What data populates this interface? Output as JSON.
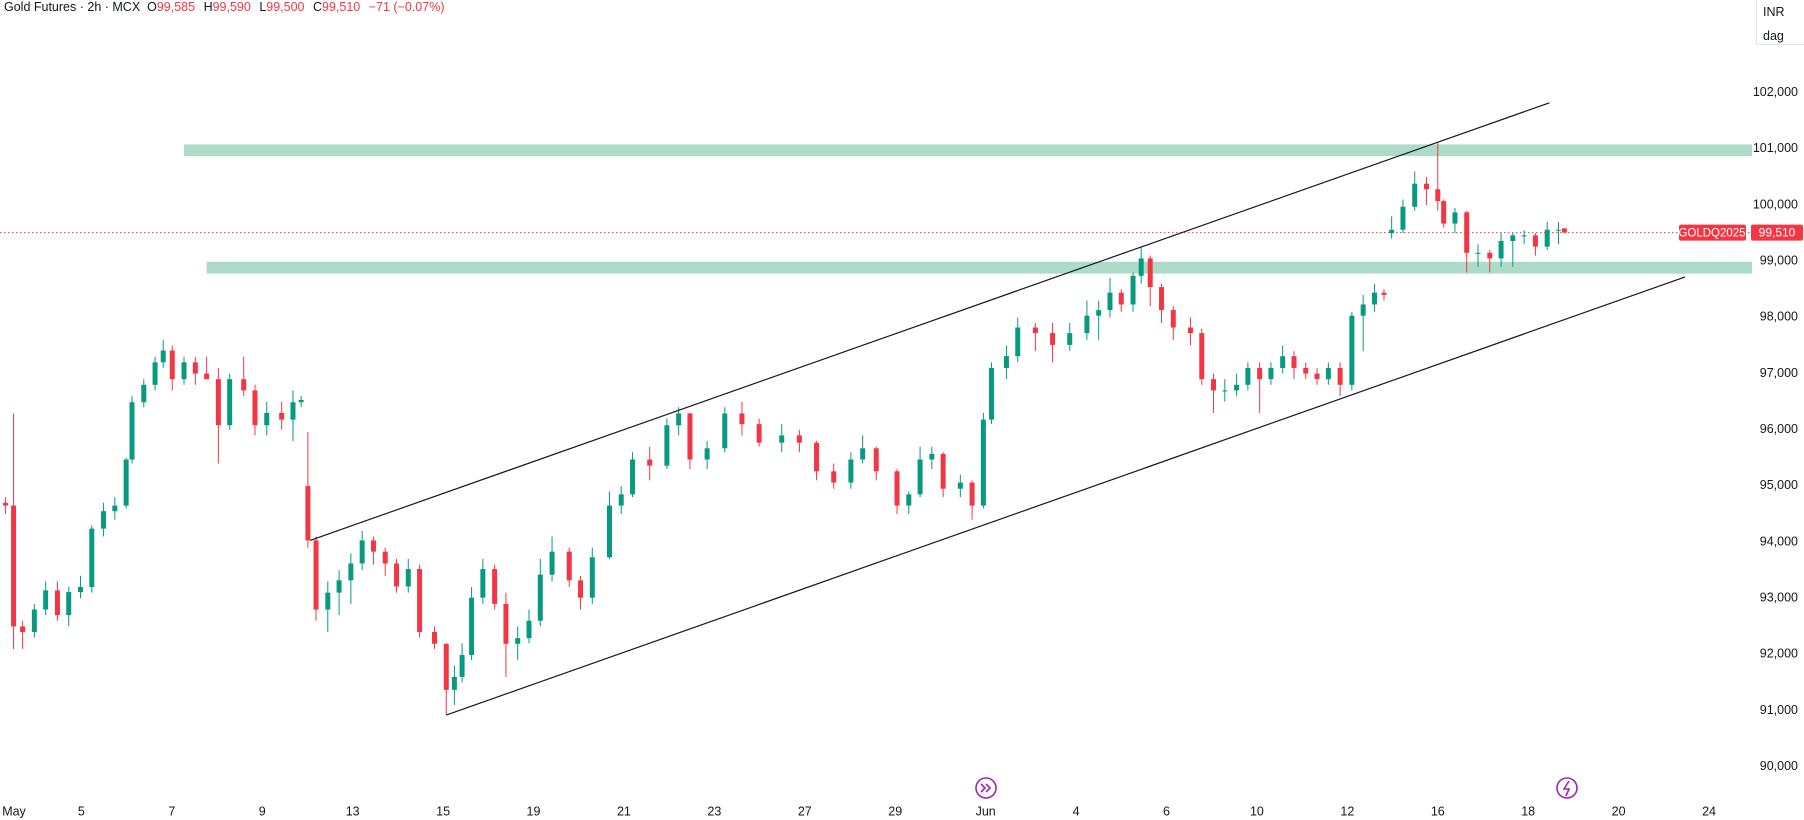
{
  "header": {
    "title": "Gold Futures · 2h · MCX",
    "ohlc": [
      {
        "key": "O",
        "value": "99,585"
      },
      {
        "key": "H",
        "value": "99,590"
      },
      {
        "key": "L",
        "value": "99,500"
      },
      {
        "key": "C",
        "value": "99,510"
      }
    ],
    "change": "−71 (−0.07%)"
  },
  "currency": "INR",
  "unit": "dag",
  "chart_data": {
    "type": "candlestick",
    "up_color": "#089981",
    "down_color": "#f23645",
    "xlim": [
      -0.3,
      38.45
    ],
    "ylim": [
      89320,
      103650
    ],
    "yticks": [
      {
        "value": 90000,
        "label": "90,000"
      },
      {
        "value": 91000,
        "label": "91,000"
      },
      {
        "value": 92000,
        "label": "92,000"
      },
      {
        "value": 93000,
        "label": "93,000"
      },
      {
        "value": 94000,
        "label": "94,000"
      },
      {
        "value": 95000,
        "label": "95,000"
      },
      {
        "value": 96000,
        "label": "96,000"
      },
      {
        "value": 97000,
        "label": "97,000"
      },
      {
        "value": 98000,
        "label": "98,000"
      },
      {
        "value": 99000,
        "label": "99,000"
      },
      {
        "value": 100000,
        "label": "100,000"
      },
      {
        "value": 101000,
        "label": "101,000"
      },
      {
        "value": 102000,
        "label": "102,000"
      }
    ],
    "xticks": [
      {
        "value": 0,
        "label": "May"
      },
      {
        "value": 1.5,
        "label": "5"
      },
      {
        "value": 3.5,
        "label": "7"
      },
      {
        "value": 5.5,
        "label": "9"
      },
      {
        "value": 7.5,
        "label": "13"
      },
      {
        "value": 9.5,
        "label": "15"
      },
      {
        "value": 11.5,
        "label": "19"
      },
      {
        "value": 13.5,
        "label": "21"
      },
      {
        "value": 15.5,
        "label": "23"
      },
      {
        "value": 17.5,
        "label": "27"
      },
      {
        "value": 19.5,
        "label": "29"
      },
      {
        "value": 21.5,
        "label": "Jun"
      },
      {
        "value": 23.5,
        "label": "4"
      },
      {
        "value": 25.5,
        "label": "6"
      },
      {
        "value": 27.5,
        "label": "10"
      },
      {
        "value": 29.5,
        "label": "12"
      },
      {
        "value": 31.5,
        "label": "16"
      },
      {
        "value": 33.5,
        "label": "18"
      },
      {
        "value": 35.5,
        "label": "20"
      },
      {
        "value": 37.5,
        "label": "24"
      }
    ],
    "x": [
      -0.18,
      0,
      0.2,
      0.46,
      0.71,
      0.97,
      1.22,
      1.48,
      1.73,
      1.99,
      2.24,
      2.49,
      2.62,
      2.88,
      3.13,
      3.31,
      3.51,
      3.77,
      4.02,
      4.27,
      4.53,
      4.78,
      5.09,
      5.34,
      5.6,
      5.93,
      6.18,
      6.36,
      6.51,
      6.69,
      6.95,
      7.2,
      7.46,
      7.71,
      7.96,
      8.22,
      8.47,
      8.73,
      8.98,
      9.31,
      9.57,
      9.75,
      9.92,
      10.13,
      10.38,
      10.64,
      10.89,
      11.15,
      11.4,
      11.65,
      11.91,
      12.29,
      12.54,
      12.8,
      13.18,
      13.44,
      13.69,
      14.07,
      14.45,
      14.71,
      14.96,
      15.34,
      15.73,
      16.11,
      16.49,
      16.99,
      17.38,
      17.76,
      18.14,
      18.52,
      18.78,
      19.08,
      19.54,
      19.8,
      20.05,
      20.31,
      20.56,
      20.94,
      21.2,
      21.45,
      21.63,
      21.96,
      22.21,
      22.6,
      22.98,
      23.36,
      23.74,
      24.0,
      24.25,
      24.5,
      24.76,
      24.94,
      25.14,
      25.39,
      25.65,
      26.03,
      26.28,
      26.54,
      26.79,
      27.05,
      27.3,
      27.56,
      27.81,
      28.07,
      28.32,
      28.58,
      28.83,
      29.08,
      29.34,
      29.6,
      29.85,
      30.1,
      30.31,
      30.48,
      30.73,
      30.99,
      31.25,
      31.5,
      31.63,
      31.88,
      32.14,
      32.39,
      32.65,
      32.9,
      33.16,
      33.41,
      33.66,
      33.92,
      34.17,
      34.3
    ],
    "ohlc": [
      [
        94700,
        94800,
        94500,
        94650
      ],
      [
        94650,
        96290,
        92100,
        92500
      ],
      [
        92500,
        92600,
        92100,
        92400
      ],
      [
        92400,
        92900,
        92300,
        92800
      ],
      [
        92800,
        93300,
        92700,
        93140
      ],
      [
        93140,
        93300,
        92600,
        92700
      ],
      [
        92700,
        93200,
        92500,
        93110
      ],
      [
        93110,
        93400,
        93000,
        93200
      ],
      [
        93200,
        94300,
        93100,
        94240
      ],
      [
        94240,
        94700,
        94100,
        94550
      ],
      [
        94550,
        94800,
        94400,
        94650
      ],
      [
        94650,
        95500,
        94600,
        95470
      ],
      [
        95470,
        96600,
        95400,
        96490
      ],
      [
        96490,
        96900,
        96400,
        96800
      ],
      [
        96800,
        97300,
        96700,
        97200
      ],
      [
        97200,
        97600,
        97100,
        97410
      ],
      [
        97410,
        97500,
        96700,
        96900
      ],
      [
        96900,
        97300,
        96800,
        97200
      ],
      [
        97200,
        97300,
        96800,
        97000
      ],
      [
        97000,
        97300,
        96900,
        96900
      ],
      [
        96900,
        97100,
        95400,
        96080
      ],
      [
        96080,
        97000,
        96000,
        96900
      ],
      [
        96900,
        97300,
        96600,
        96700
      ],
      [
        96700,
        96800,
        95900,
        96080
      ],
      [
        96080,
        96500,
        95900,
        96300
      ],
      [
        96300,
        96500,
        96000,
        96180
      ],
      [
        96180,
        96700,
        95800,
        96490
      ],
      [
        96490,
        96600,
        96400,
        96530
      ],
      [
        95000,
        95960,
        93900,
        94030
      ],
      [
        94030,
        94100,
        92600,
        92800
      ],
      [
        92800,
        93300,
        92400,
        93100
      ],
      [
        93100,
        93500,
        92700,
        93320
      ],
      [
        93320,
        93800,
        92900,
        93620
      ],
      [
        93620,
        94200,
        93500,
        94030
      ],
      [
        94030,
        94100,
        93600,
        93830
      ],
      [
        93830,
        93900,
        93400,
        93620
      ],
      [
        93620,
        93700,
        93100,
        93210
      ],
      [
        93210,
        93700,
        93100,
        93520
      ],
      [
        93520,
        93600,
        92300,
        92400
      ],
      [
        92400,
        92500,
        92100,
        92190
      ],
      [
        92190,
        92200,
        90920,
        91370
      ],
      [
        91370,
        91800,
        91100,
        91600
      ],
      [
        91600,
        92200,
        91500,
        91990
      ],
      [
        91990,
        93200,
        91900,
        93010
      ],
      [
        93010,
        93700,
        92900,
        93520
      ],
      [
        93520,
        93600,
        92800,
        92900
      ],
      [
        92900,
        93100,
        91600,
        92190
      ],
      [
        92190,
        92500,
        91900,
        92290
      ],
      [
        92290,
        92800,
        92200,
        92600
      ],
      [
        92600,
        93700,
        92500,
        93420
      ],
      [
        93420,
        94100,
        93300,
        93830
      ],
      [
        93830,
        93900,
        93200,
        93320
      ],
      [
        93320,
        93400,
        92800,
        93010
      ],
      [
        93010,
        93900,
        92900,
        93730
      ],
      [
        93730,
        94900,
        93700,
        94650
      ],
      [
        94650,
        95000,
        94500,
        94850
      ],
      [
        94850,
        95600,
        94800,
        95470
      ],
      [
        95470,
        95700,
        95100,
        95360
      ],
      [
        95360,
        96200,
        95300,
        96080
      ],
      [
        96080,
        96400,
        95900,
        96290
      ],
      [
        96290,
        96300,
        95300,
        95470
      ],
      [
        95470,
        95800,
        95300,
        95670
      ],
      [
        95670,
        96400,
        95600,
        96290
      ],
      [
        96290,
        96500,
        95900,
        96100
      ],
      [
        96100,
        96200,
        95700,
        95770
      ],
      [
        95770,
        96100,
        95600,
        95900
      ],
      [
        95900,
        96000,
        95600,
        95770
      ],
      [
        95770,
        95800,
        95100,
        95260
      ],
      [
        95260,
        95400,
        94950,
        95060
      ],
      [
        95060,
        95600,
        94950,
        95470
      ],
      [
        95470,
        95900,
        95400,
        95670
      ],
      [
        95670,
        95700,
        95100,
        95260
      ],
      [
        95260,
        95300,
        94500,
        94650
      ],
      [
        94650,
        94900,
        94500,
        94850
      ],
      [
        94850,
        95700,
        94800,
        95470
      ],
      [
        95470,
        95700,
        95300,
        95570
      ],
      [
        95570,
        95600,
        94800,
        94950
      ],
      [
        94950,
        95200,
        94800,
        95060
      ],
      [
        95060,
        95100,
        94400,
        94650
      ],
      [
        94650,
        96300,
        94600,
        96180
      ],
      [
        96180,
        97200,
        96100,
        97100
      ],
      [
        97100,
        97500,
        96900,
        97310
      ],
      [
        97310,
        98000,
        97200,
        97820
      ],
      [
        97820,
        97900,
        97400,
        97720
      ],
      [
        97720,
        97900,
        97200,
        97510
      ],
      [
        97510,
        97900,
        97400,
        97720
      ],
      [
        97720,
        98300,
        97600,
        98030
      ],
      [
        98030,
        98300,
        97600,
        98130
      ],
      [
        98130,
        98700,
        98000,
        98440
      ],
      [
        98440,
        98500,
        98100,
        98230
      ],
      [
        98230,
        98800,
        98100,
        98740
      ],
      [
        98740,
        99250,
        98600,
        99050
      ],
      [
        99050,
        99100,
        98200,
        98540
      ],
      [
        98540,
        98600,
        97900,
        98130
      ],
      [
        98130,
        98200,
        97600,
        97820
      ],
      [
        97820,
        98000,
        97500,
        97720
      ],
      [
        97720,
        97800,
        96800,
        96900
      ],
      [
        96900,
        97000,
        96300,
        96700
      ],
      [
        96700,
        96900,
        96500,
        96700
      ],
      [
        96700,
        97000,
        96600,
        96800
      ],
      [
        96800,
        97200,
        96700,
        97100
      ],
      [
        97100,
        97200,
        96300,
        96900
      ],
      [
        96900,
        97200,
        96800,
        97100
      ],
      [
        97100,
        97500,
        97000,
        97310
      ],
      [
        97310,
        97400,
        96900,
        97100
      ],
      [
        97100,
        97200,
        96900,
        97000
      ],
      [
        97000,
        97100,
        96800,
        96900
      ],
      [
        96900,
        97200,
        96800,
        97100
      ],
      [
        97100,
        97200,
        96600,
        96800
      ],
      [
        96800,
        98100,
        96700,
        98030
      ],
      [
        98030,
        98400,
        97400,
        98230
      ],
      [
        98230,
        98600,
        98100,
        98440
      ],
      [
        98440,
        98500,
        98300,
        98400
      ],
      [
        99500,
        99800,
        99400,
        99560
      ],
      [
        99560,
        100100,
        99500,
        99970
      ],
      [
        99970,
        100600,
        99900,
        100380
      ],
      [
        100380,
        100500,
        100000,
        100280
      ],
      [
        100280,
        101100,
        99900,
        100070
      ],
      [
        100070,
        100100,
        99600,
        99670
      ],
      [
        99670,
        99950,
        99500,
        99870
      ],
      [
        99870,
        99900,
        98800,
        99150
      ],
      [
        99150,
        99300,
        98900,
        99150
      ],
      [
        99150,
        99200,
        98800,
        99050
      ],
      [
        99050,
        99500,
        98900,
        99360
      ],
      [
        99360,
        99500,
        98900,
        99460
      ],
      [
        99460,
        99550,
        99300,
        99460
      ],
      [
        99460,
        99500,
        99100,
        99260
      ],
      [
        99260,
        99700,
        99200,
        99560
      ],
      [
        99560,
        99700,
        99300,
        99560
      ],
      [
        99585,
        99590,
        99500,
        99510
      ]
    ],
    "zones": [
      {
        "x0": 3.77,
        "x1": 38.45,
        "ymin": 100870,
        "ymax": 101080
      },
      {
        "x0": 4.27,
        "x1": 38.45,
        "ymin": 98780,
        "ymax": 98990
      }
    ],
    "zone_color": "#acdcc9",
    "trendlines": [
      {
        "x": [
          6.56,
          33.97
        ],
        "y": [
          94030,
          101820
        ]
      },
      {
        "x": [
          9.57,
          36.97
        ],
        "y": [
          90920,
          98720
        ]
      }
    ],
    "last_price": {
      "value": 99510,
      "label": "99,510",
      "symbol": "GOLDQ2025",
      "color": "#f23645"
    }
  }
}
